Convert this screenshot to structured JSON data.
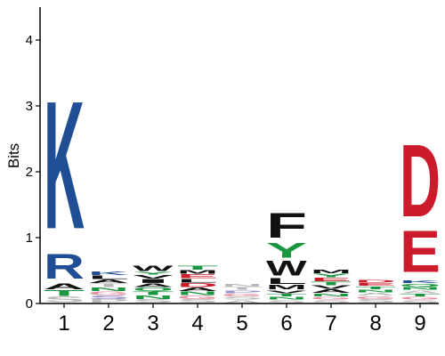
{
  "chart_data": {
    "type": "sequence-logo",
    "title": "",
    "xlabel": "",
    "ylabel": "Bits",
    "ylim": [
      0,
      4.5
    ],
    "yticks": [
      0,
      1,
      2,
      3,
      4
    ],
    "positions": [
      "1",
      "2",
      "3",
      "4",
      "5",
      "6",
      "7",
      "8",
      "9"
    ],
    "colors": {
      "blue": "#1f4e94",
      "green": "#1a9641",
      "red": "#cc1b2b",
      "black": "#111111",
      "pink": "#e48fa0",
      "lavender": "#9a93c9",
      "gray": "#b8b8b8"
    },
    "stacks": [
      [
        {
          "letter": "S",
          "bits": 0.1,
          "color": "gray"
        },
        {
          "letter": "T",
          "bits": 0.1,
          "color": "green"
        },
        {
          "letter": "A",
          "bits": 0.1,
          "color": "black"
        },
        {
          "letter": "R",
          "bits": 0.45,
          "color": "blue"
        },
        {
          "letter": "K",
          "bits": 2.3,
          "color": "blue"
        }
      ],
      [
        {
          "letter": "P",
          "bits": 0.06,
          "color": "gray"
        },
        {
          "letter": "S",
          "bits": 0.06,
          "color": "lavender"
        },
        {
          "letter": "G",
          "bits": 0.06,
          "color": "pink"
        },
        {
          "letter": "N",
          "bits": 0.06,
          "color": "green"
        },
        {
          "letter": "T",
          "bits": 0.06,
          "color": "gray"
        },
        {
          "letter": "A",
          "bits": 0.06,
          "color": "black"
        },
        {
          "letter": "L",
          "bits": 0.06,
          "color": "black"
        },
        {
          "letter": "K",
          "bits": 0.06,
          "color": "blue"
        }
      ],
      [
        {
          "letter": "S",
          "bits": 0.06,
          "color": "gray"
        },
        {
          "letter": "N",
          "bits": 0.06,
          "color": "green"
        },
        {
          "letter": "T",
          "bits": 0.06,
          "color": "green"
        },
        {
          "letter": "Q",
          "bits": 0.06,
          "color": "green"
        },
        {
          "letter": "A",
          "bits": 0.06,
          "color": "black"
        },
        {
          "letter": "I",
          "bits": 0.07,
          "color": "black"
        },
        {
          "letter": "V",
          "bits": 0.06,
          "color": "black"
        },
        {
          "letter": "Y",
          "bits": 0.05,
          "color": "green"
        },
        {
          "letter": "W",
          "bits": 0.09,
          "color": "black"
        }
      ],
      [
        {
          "letter": "S",
          "bits": 0.06,
          "color": "gray"
        },
        {
          "letter": "G",
          "bits": 0.06,
          "color": "pink"
        },
        {
          "letter": "N",
          "bits": 0.06,
          "color": "green"
        },
        {
          "letter": "A",
          "bits": 0.06,
          "color": "black"
        },
        {
          "letter": "D",
          "bits": 0.07,
          "color": "red"
        },
        {
          "letter": "L",
          "bits": 0.06,
          "color": "black"
        },
        {
          "letter": "E",
          "bits": 0.07,
          "color": "red"
        },
        {
          "letter": "M",
          "bits": 0.06,
          "color": "black"
        },
        {
          "letter": "T",
          "bits": 0.07,
          "color": "green"
        }
      ],
      [
        {
          "letter": "A",
          "bits": 0.05,
          "color": "gray"
        },
        {
          "letter": "S",
          "bits": 0.05,
          "color": "gray"
        },
        {
          "letter": "G",
          "bits": 0.05,
          "color": "pink"
        },
        {
          "letter": "P",
          "bits": 0.05,
          "color": "lavender"
        },
        {
          "letter": "T",
          "bits": 0.05,
          "color": "gray"
        },
        {
          "letter": "N",
          "bits": 0.05,
          "color": "gray"
        }
      ],
      [
        {
          "letter": "S",
          "bits": 0.05,
          "color": "gray"
        },
        {
          "letter": "N",
          "bits": 0.05,
          "color": "green"
        },
        {
          "letter": "T",
          "bits": 0.05,
          "color": "green"
        },
        {
          "letter": "V",
          "bits": 0.05,
          "color": "black"
        },
        {
          "letter": "M",
          "bits": 0.08,
          "color": "black"
        },
        {
          "letter": "L",
          "bits": 0.1,
          "color": "black"
        },
        {
          "letter": "W",
          "bits": 0.27,
          "color": "black"
        },
        {
          "letter": "Y",
          "bits": 0.27,
          "color": "green"
        },
        {
          "letter": "F",
          "bits": 0.45,
          "color": "black"
        }
      ],
      [
        {
          "letter": "S",
          "bits": 0.05,
          "color": "gray"
        },
        {
          "letter": "G",
          "bits": 0.05,
          "color": "pink"
        },
        {
          "letter": "N",
          "bits": 0.05,
          "color": "green"
        },
        {
          "letter": "A",
          "bits": 0.06,
          "color": "black"
        },
        {
          "letter": "V",
          "bits": 0.06,
          "color": "black"
        },
        {
          "letter": "T",
          "bits": 0.06,
          "color": "green"
        },
        {
          "letter": "E",
          "bits": 0.06,
          "color": "red"
        },
        {
          "letter": "Y",
          "bits": 0.06,
          "color": "green"
        },
        {
          "letter": "M",
          "bits": 0.06,
          "color": "black"
        }
      ],
      [
        {
          "letter": "S",
          "bits": 0.06,
          "color": "gray"
        },
        {
          "letter": "G",
          "bits": 0.05,
          "color": "pink"
        },
        {
          "letter": "A",
          "bits": 0.05,
          "color": "gray"
        },
        {
          "letter": "N",
          "bits": 0.05,
          "color": "green"
        },
        {
          "letter": "T",
          "bits": 0.05,
          "color": "green"
        },
        {
          "letter": "E",
          "bits": 0.05,
          "color": "red"
        },
        {
          "letter": "D",
          "bits": 0.05,
          "color": "red"
        }
      ],
      [
        {
          "letter": "S",
          "bits": 0.05,
          "color": "gray"
        },
        {
          "letter": "G",
          "bits": 0.05,
          "color": "pink"
        },
        {
          "letter": "T",
          "bits": 0.05,
          "color": "green"
        },
        {
          "letter": "A",
          "bits": 0.05,
          "color": "gray"
        },
        {
          "letter": "N",
          "bits": 0.05,
          "color": "green"
        },
        {
          "letter": "Q",
          "bits": 0.05,
          "color": "green"
        },
        {
          "letter": "K",
          "bits": 0.05,
          "color": "blue"
        },
        {
          "letter": "E",
          "bits": 0.75,
          "color": "red"
        },
        {
          "letter": "D",
          "bits": 1.3,
          "color": "red"
        }
      ]
    ]
  }
}
